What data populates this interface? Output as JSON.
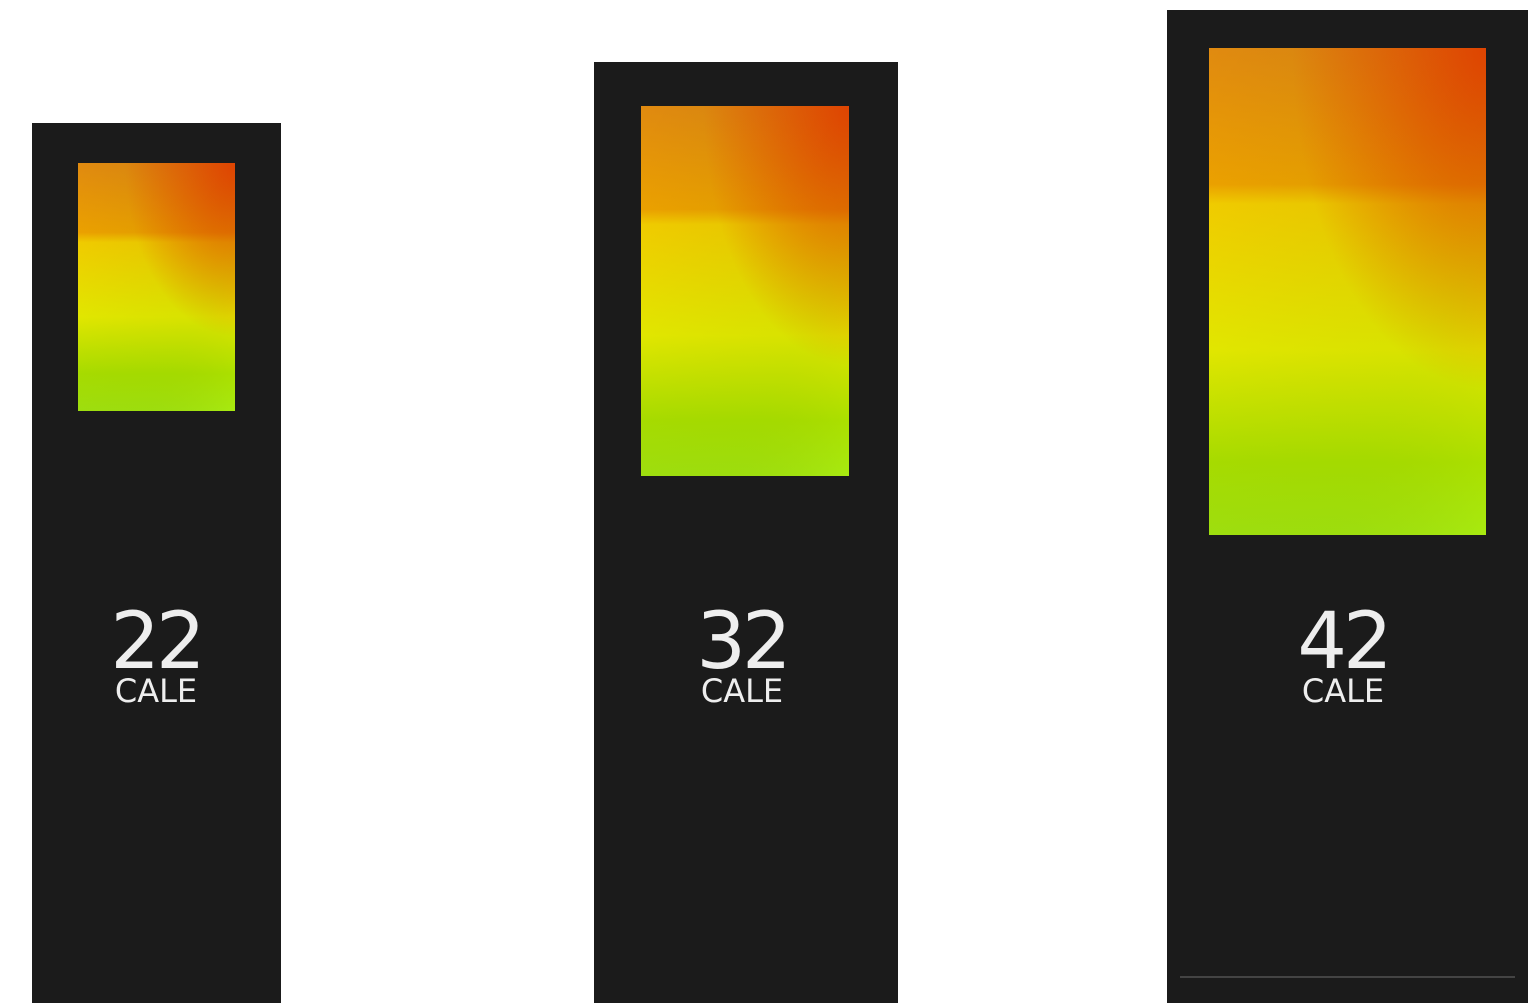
{
  "kiosks": [
    {
      "size": "22",
      "unit": "CALE"
    },
    {
      "size": "32",
      "unit": "CALE"
    },
    {
      "size": "42",
      "unit": "CALE"
    }
  ]
}
